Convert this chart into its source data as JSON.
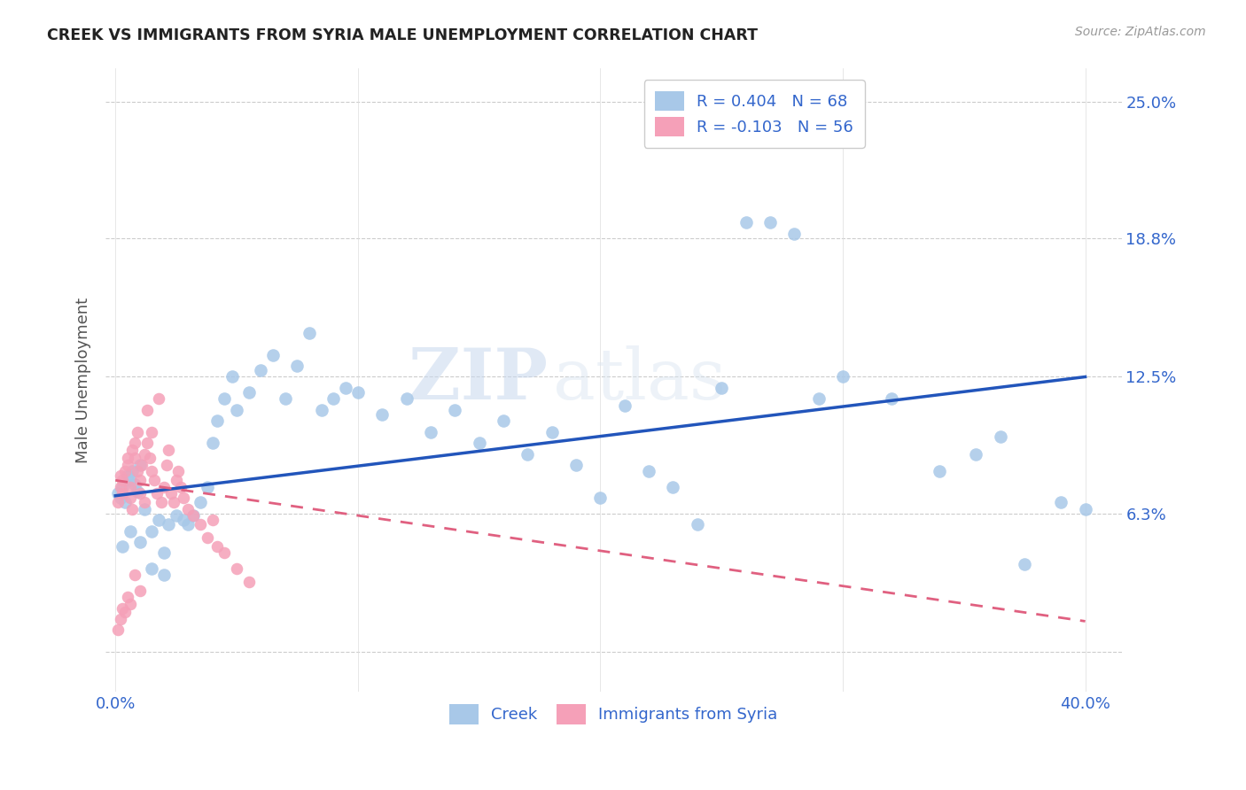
{
  "title": "CREEK VS IMMIGRANTS FROM SYRIA MALE UNEMPLOYMENT CORRELATION CHART",
  "source": "Source: ZipAtlas.com",
  "ylabel": "Male Unemployment",
  "y_ticks": [
    0.0,
    0.063,
    0.125,
    0.188,
    0.25
  ],
  "y_tick_labels": [
    "",
    "6.3%",
    "12.5%",
    "18.8%",
    "25.0%"
  ],
  "xlim": [
    -0.004,
    0.415
  ],
  "ylim": [
    -0.018,
    0.265
  ],
  "creek_color": "#a8c8e8",
  "syria_color": "#f5a0b8",
  "creek_line_color": "#2255bb",
  "syria_line_color": "#e06080",
  "creek_R": 0.404,
  "creek_N": 68,
  "syria_R": -0.103,
  "syria_N": 56,
  "legend_creek_label": "Creek",
  "legend_syria_label": "Immigrants from Syria",
  "watermark_zip": "ZIP",
  "watermark_atlas": "atlas",
  "creek_line_x0": 0.0,
  "creek_line_y0": 0.071,
  "creek_line_x1": 0.4,
  "creek_line_y1": 0.125,
  "syria_line_x0": 0.0,
  "syria_line_y0": 0.078,
  "syria_line_x1": 0.4,
  "syria_line_y1": 0.014,
  "creek_pts_x": [
    0.001,
    0.002,
    0.003,
    0.004,
    0.005,
    0.006,
    0.007,
    0.008,
    0.009,
    0.01,
    0.012,
    0.015,
    0.018,
    0.02,
    0.022,
    0.025,
    0.028,
    0.03,
    0.032,
    0.035,
    0.038,
    0.04,
    0.042,
    0.045,
    0.048,
    0.05,
    0.055,
    0.06,
    0.065,
    0.07,
    0.075,
    0.08,
    0.085,
    0.09,
    0.095,
    0.1,
    0.11,
    0.12,
    0.13,
    0.14,
    0.15,
    0.16,
    0.17,
    0.18,
    0.19,
    0.2,
    0.21,
    0.22,
    0.23,
    0.24,
    0.25,
    0.26,
    0.27,
    0.28,
    0.29,
    0.3,
    0.32,
    0.34,
    0.355,
    0.365,
    0.375,
    0.39,
    0.4,
    0.003,
    0.006,
    0.01,
    0.015,
    0.02
  ],
  "creek_pts_y": [
    0.072,
    0.07,
    0.075,
    0.068,
    0.08,
    0.078,
    0.082,
    0.076,
    0.073,
    0.085,
    0.065,
    0.055,
    0.06,
    0.045,
    0.058,
    0.062,
    0.06,
    0.058,
    0.062,
    0.068,
    0.075,
    0.095,
    0.105,
    0.115,
    0.125,
    0.11,
    0.118,
    0.128,
    0.135,
    0.115,
    0.13,
    0.145,
    0.11,
    0.115,
    0.12,
    0.118,
    0.108,
    0.115,
    0.1,
    0.11,
    0.095,
    0.105,
    0.09,
    0.1,
    0.085,
    0.07,
    0.112,
    0.082,
    0.075,
    0.058,
    0.12,
    0.195,
    0.195,
    0.19,
    0.115,
    0.125,
    0.115,
    0.082,
    0.09,
    0.098,
    0.04,
    0.068,
    0.065,
    0.048,
    0.055,
    0.05,
    0.038,
    0.035
  ],
  "syria_pts_x": [
    0.001,
    0.002,
    0.002,
    0.003,
    0.003,
    0.004,
    0.005,
    0.005,
    0.006,
    0.006,
    0.007,
    0.007,
    0.008,
    0.008,
    0.009,
    0.009,
    0.01,
    0.01,
    0.011,
    0.012,
    0.012,
    0.013,
    0.013,
    0.014,
    0.015,
    0.015,
    0.016,
    0.017,
    0.018,
    0.019,
    0.02,
    0.021,
    0.022,
    0.023,
    0.024,
    0.025,
    0.026,
    0.027,
    0.028,
    0.03,
    0.032,
    0.035,
    0.038,
    0.04,
    0.042,
    0.045,
    0.05,
    0.055,
    0.001,
    0.002,
    0.003,
    0.004,
    0.005,
    0.006,
    0.008,
    0.01
  ],
  "syria_pts_y": [
    0.068,
    0.075,
    0.08,
    0.072,
    0.078,
    0.082,
    0.085,
    0.088,
    0.075,
    0.07,
    0.065,
    0.092,
    0.088,
    0.095,
    0.1,
    0.082,
    0.078,
    0.072,
    0.085,
    0.068,
    0.09,
    0.11,
    0.095,
    0.088,
    0.1,
    0.082,
    0.078,
    0.072,
    0.115,
    0.068,
    0.075,
    0.085,
    0.092,
    0.072,
    0.068,
    0.078,
    0.082,
    0.075,
    0.07,
    0.065,
    0.062,
    0.058,
    0.052,
    0.06,
    0.048,
    0.045,
    0.038,
    0.032,
    0.01,
    0.015,
    0.02,
    0.018,
    0.025,
    0.022,
    0.035,
    0.028
  ]
}
